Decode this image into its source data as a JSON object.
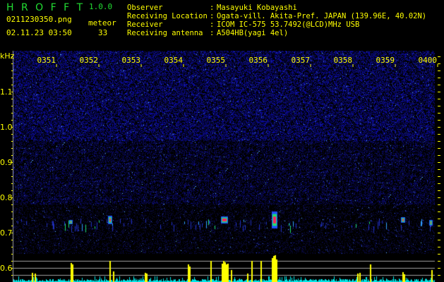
{
  "header": {
    "app_title": "H R O F F T",
    "version": "1.0.0",
    "filename": "0211230350.png",
    "datetime": "02.11.23 03:50",
    "meteor_label": "meteor",
    "meteor_count": "33",
    "info": [
      {
        "label": "Observer",
        "value": "Masayuki Kobayashi"
      },
      {
        "label": "Receiving Location",
        "value": "Ogata-vill. Akita-Pref. JAPAN (139.96E, 40.02N)"
      },
      {
        "label": "Receiver",
        "value": "ICOM IC-575 53.7492(@LCD)MHz USB"
      },
      {
        "label": "Receiving antenna",
        "value": "A504HB(yagi 4el)"
      }
    ]
  },
  "chart_data": {
    "type": "heatmap",
    "ylabel": "kHz",
    "x_ticks": [
      "0351",
      "0352",
      "0353",
      "0354",
      "0355",
      "0356",
      "0357",
      "0358",
      "0359",
      "0400"
    ],
    "y_ticks": [
      "1.1",
      "1.0",
      "0.9",
      "0.8",
      "0.7",
      "0.6"
    ],
    "ylim": [
      0.56,
      1.22
    ],
    "colors": {
      "background": "#000000",
      "noise": "#1a1aa0",
      "echo_strong": "#ff2060",
      "echo_mid": "#20e070",
      "counter_bar": "#ffff00",
      "noise_floor": "#00e8e8",
      "text": "#ffff00"
    }
  }
}
